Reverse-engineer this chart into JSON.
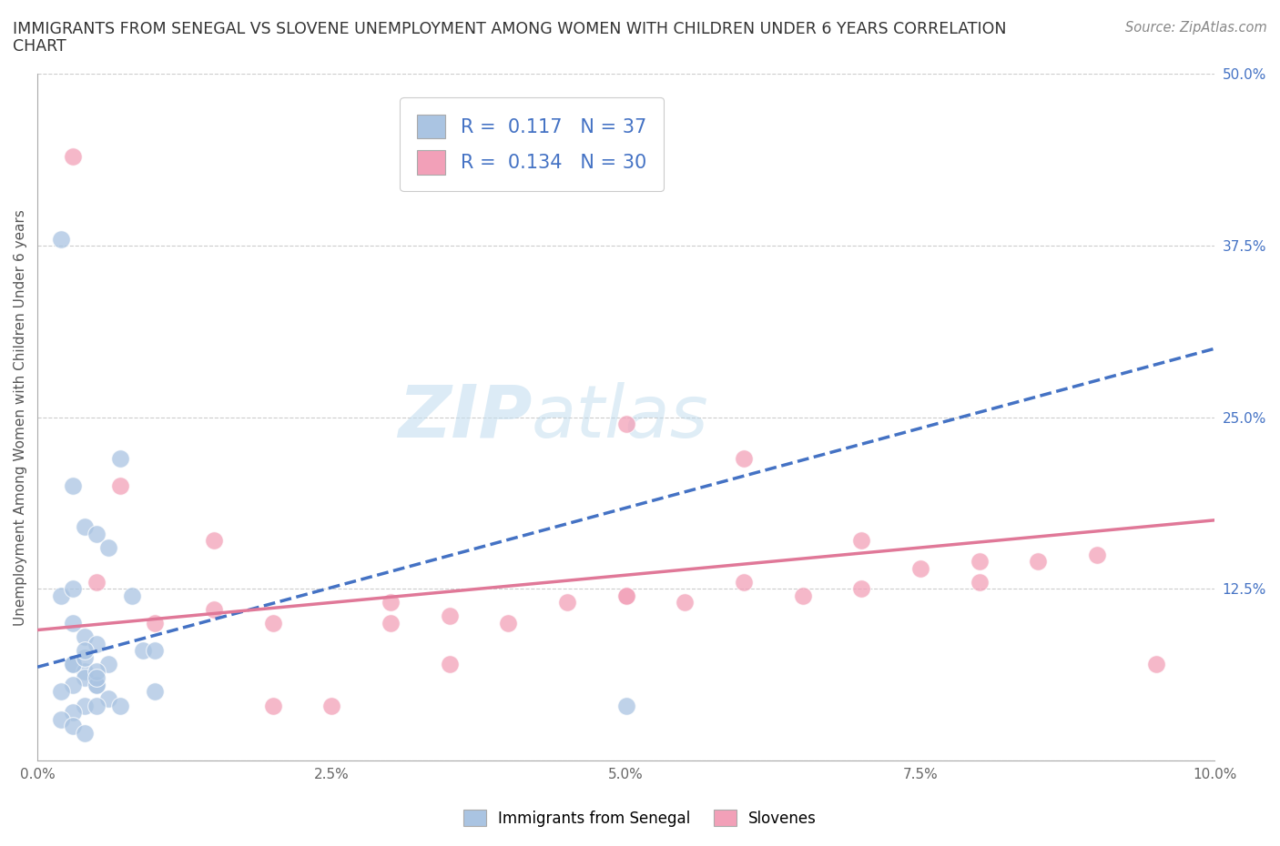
{
  "title_line1": "IMMIGRANTS FROM SENEGAL VS SLOVENE UNEMPLOYMENT AMONG WOMEN WITH CHILDREN UNDER 6 YEARS CORRELATION",
  "title_line2": "CHART",
  "source": "Source: ZipAtlas.com",
  "ylabel": "Unemployment Among Women with Children Under 6 years",
  "xlim": [
    0,
    0.1
  ],
  "ylim": [
    0,
    0.5
  ],
  "xticks": [
    0.0,
    0.025,
    0.05,
    0.075,
    0.1
  ],
  "xtick_labels": [
    "0.0%",
    "2.5%",
    "5.0%",
    "7.5%",
    "10.0%"
  ],
  "yticks": [
    0.0,
    0.125,
    0.25,
    0.375,
    0.5
  ],
  "ytick_labels": [
    "",
    "12.5%",
    "25.0%",
    "37.5%",
    "50.0%"
  ],
  "legend_label1": "Immigrants from Senegal",
  "legend_label2": "Slovenes",
  "R1": 0.117,
  "N1": 37,
  "R2": 0.134,
  "N2": 30,
  "blue_color": "#aac4e2",
  "pink_color": "#f2a0b8",
  "blue_line_color": "#4472c4",
  "pink_line_color": "#e07898",
  "watermark": "ZIPatlas",
  "blue_scatter_x": [
    0.002,
    0.003,
    0.004,
    0.005,
    0.006,
    0.007,
    0.008,
    0.009,
    0.01,
    0.01,
    0.002,
    0.003,
    0.004,
    0.005,
    0.006,
    0.003,
    0.004,
    0.005,
    0.006,
    0.007,
    0.003,
    0.004,
    0.005,
    0.003,
    0.004,
    0.005,
    0.004,
    0.005,
    0.003,
    0.002,
    0.004,
    0.003,
    0.002,
    0.003,
    0.004,
    0.005,
    0.05
  ],
  "blue_scatter_y": [
    0.38,
    0.2,
    0.17,
    0.165,
    0.155,
    0.22,
    0.12,
    0.08,
    0.08,
    0.05,
    0.12,
    0.1,
    0.09,
    0.085,
    0.07,
    0.07,
    0.065,
    0.055,
    0.045,
    0.04,
    0.07,
    0.06,
    0.055,
    0.125,
    0.075,
    0.065,
    0.08,
    0.06,
    0.055,
    0.05,
    0.04,
    0.035,
    0.03,
    0.025,
    0.02,
    0.04,
    0.04
  ],
  "pink_scatter_x": [
    0.003,
    0.005,
    0.007,
    0.01,
    0.015,
    0.015,
    0.02,
    0.025,
    0.03,
    0.03,
    0.035,
    0.04,
    0.045,
    0.05,
    0.05,
    0.055,
    0.06,
    0.065,
    0.07,
    0.075,
    0.08,
    0.085,
    0.09,
    0.095,
    0.05,
    0.035,
    0.06,
    0.07,
    0.08,
    0.02
  ],
  "pink_scatter_y": [
    0.44,
    0.13,
    0.2,
    0.1,
    0.11,
    0.16,
    0.1,
    0.04,
    0.1,
    0.115,
    0.105,
    0.1,
    0.115,
    0.12,
    0.12,
    0.115,
    0.13,
    0.12,
    0.125,
    0.14,
    0.145,
    0.145,
    0.15,
    0.07,
    0.245,
    0.07,
    0.22,
    0.16,
    0.13,
    0.04
  ],
  "blue_trendline_x": [
    0.0,
    0.1
  ],
  "blue_trendline_y": [
    0.068,
    0.3
  ],
  "pink_trendline_x": [
    0.0,
    0.1
  ],
  "pink_trendline_y": [
    0.095,
    0.175
  ]
}
